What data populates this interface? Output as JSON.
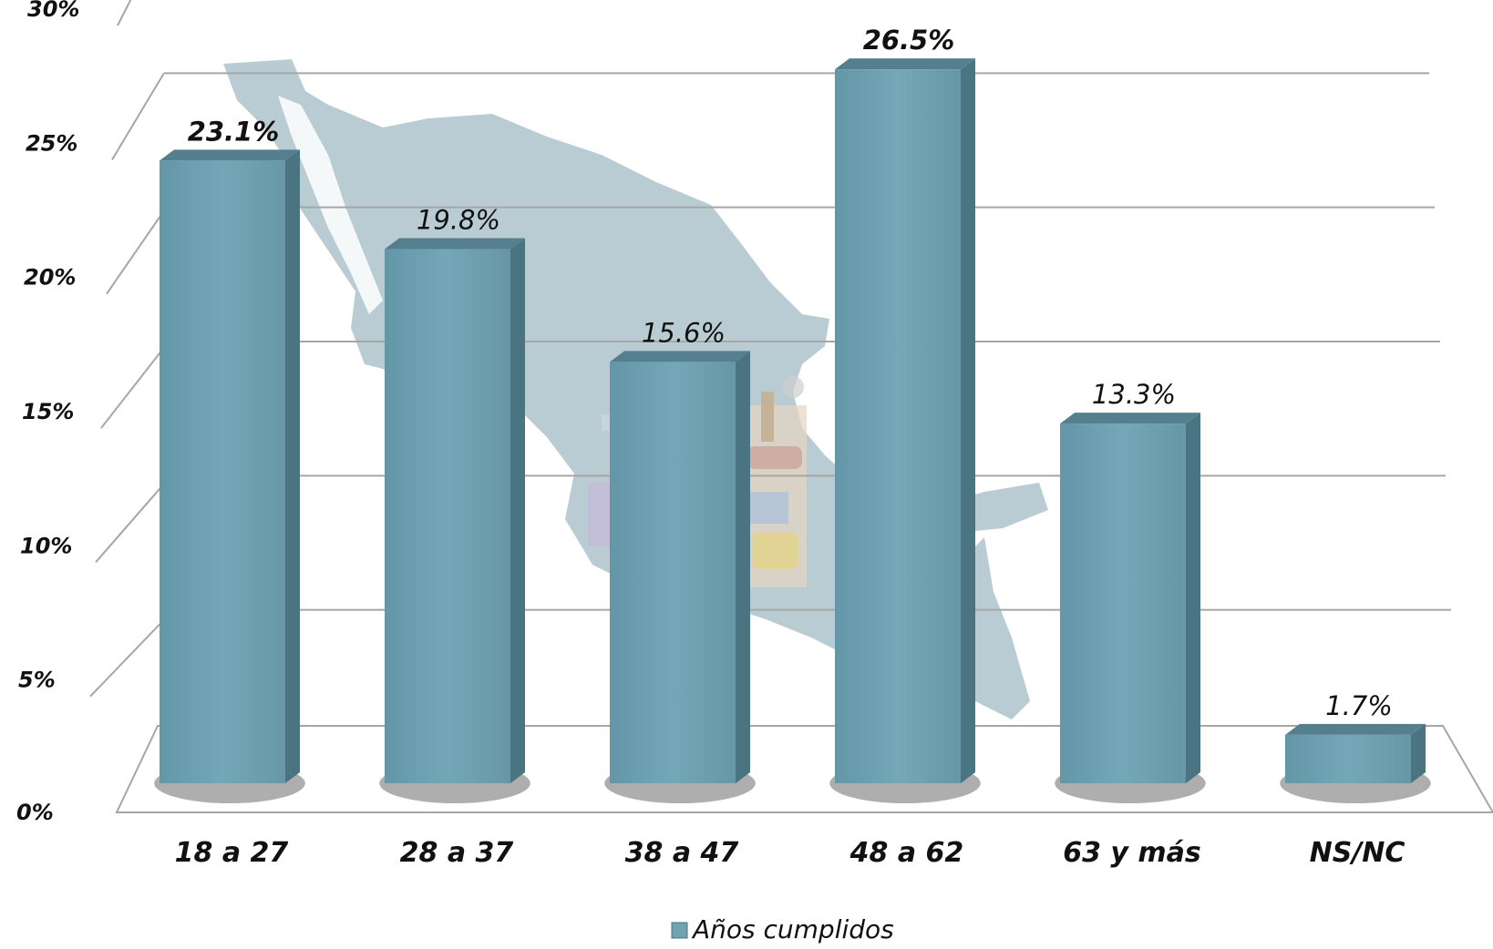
{
  "chart_data": {
    "type": "bar",
    "style": "3d-column",
    "categories": [
      "18 a 27",
      "28 a 37",
      "38 a 47",
      "48 a 62",
      "63 y más",
      "NS/NC"
    ],
    "series": [
      {
        "name": "Años cumplidos",
        "values": [
          23.1,
          19.8,
          15.6,
          26.5,
          13.3,
          1.7
        ],
        "data_labels": [
          "23.1%",
          "19.8%",
          "15.6%",
          "26.5%",
          "13.3%",
          "1.7%"
        ]
      }
    ],
    "y_ticks": [
      "0%",
      "5%",
      "10%",
      "15%",
      "20%",
      "25%",
      "30%"
    ],
    "ylim": [
      0,
      30
    ],
    "grid": true,
    "legend": {
      "position": "bottom",
      "label": "Años cumplidos"
    },
    "background_image": "map-of-mexico",
    "colors": {
      "bar_front": "#6fa2b2",
      "bar_side": "#4a7482",
      "bar_top": "#557f8f",
      "grid": "#a6a6a6",
      "map": "#b9ccd3"
    }
  }
}
